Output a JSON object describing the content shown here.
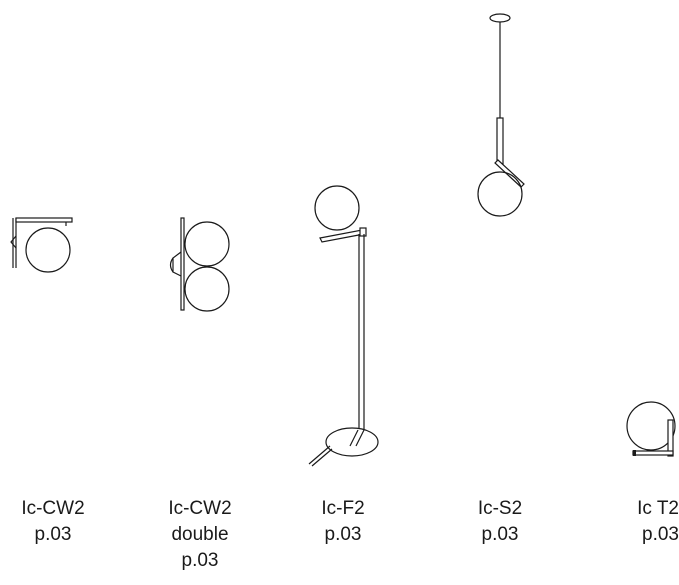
{
  "products": [
    {
      "id": "cw2",
      "icon": "wall-lamp-icon",
      "name": "Ic-CW2",
      "extra": "",
      "page": "p.03"
    },
    {
      "id": "cw2-double",
      "icon": "double-wall-lamp-icon",
      "name": "Ic-CW2",
      "extra": "double",
      "page": "p.03"
    },
    {
      "id": "f2",
      "icon": "floor-lamp-icon",
      "name": "Ic-F2",
      "extra": "",
      "page": "p.03"
    },
    {
      "id": "s2",
      "icon": "pendant-lamp-icon",
      "name": "Ic-S2",
      "extra": "",
      "page": "p.03"
    },
    {
      "id": "t2",
      "icon": "table-lamp-icon",
      "name": "Ic T2",
      "extra": "",
      "page": "p.03"
    }
  ]
}
